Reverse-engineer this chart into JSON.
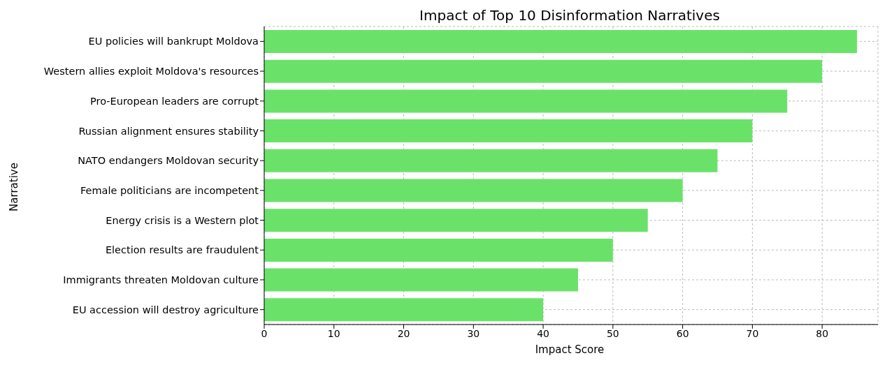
{
  "chart_data": {
    "type": "bar",
    "orientation": "horizontal",
    "title": "Impact of Top 10 Disinformation Narratives",
    "xlabel": "Impact Score",
    "ylabel": "Narrative",
    "categories": [
      "EU policies will bankrupt Moldova",
      "Western allies exploit Moldova's resources",
      "Pro-European leaders are corrupt",
      "Russian alignment ensures stability",
      "NATO endangers Moldovan security",
      "Female politicians are incompetent",
      "Energy crisis is a Western plot",
      "Election results are fraudulent",
      "Immigrants threaten Moldovan culture",
      "EU accession will destroy agriculture"
    ],
    "values": [
      85,
      80,
      75,
      70,
      65,
      60,
      55,
      50,
      45,
      40
    ],
    "color": "#6ae26a",
    "xlim": [
      0,
      88
    ],
    "xticks": [
      0,
      10,
      20,
      30,
      40,
      50,
      60,
      70,
      80
    ],
    "grid": true
  }
}
